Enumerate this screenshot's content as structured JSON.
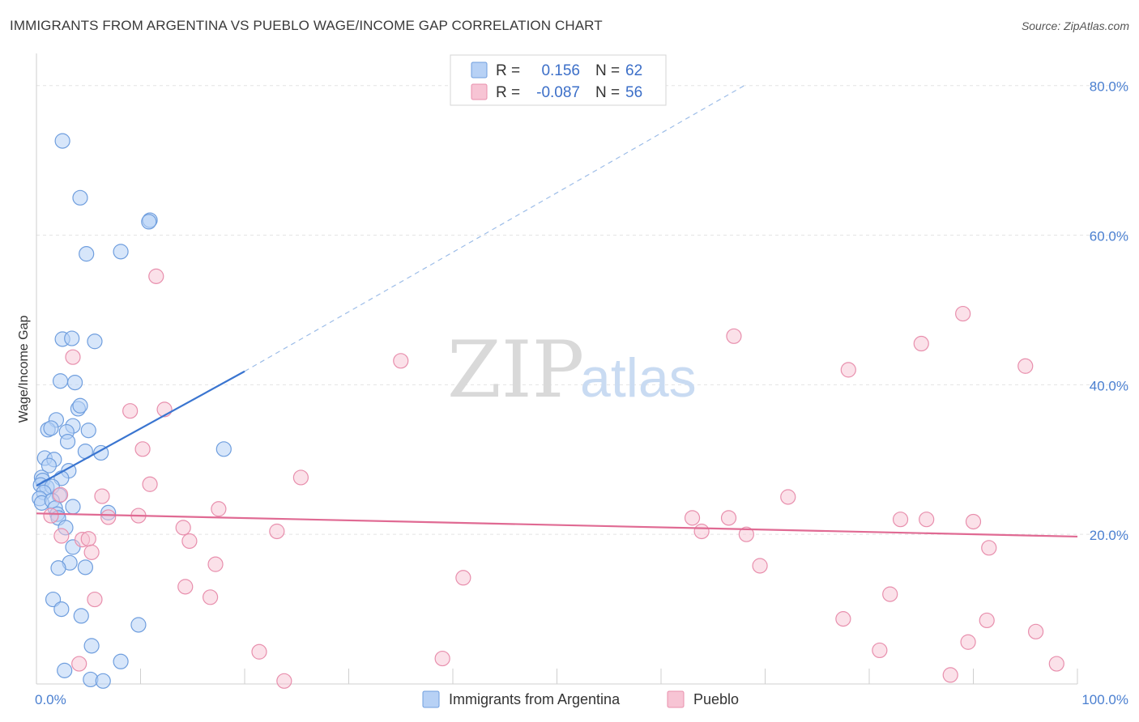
{
  "header": {
    "title": "IMMIGRANTS FROM ARGENTINA VS PUEBLO WAGE/INCOME GAP CORRELATION CHART",
    "source": "Source: ZipAtlas.com"
  },
  "watermark": {
    "zip": "ZIP",
    "atlas": "atlas"
  },
  "colors": {
    "blue_fill": "#b7d1f5",
    "blue_stroke": "#6f9ede",
    "blue_line": "#3a75d0",
    "pink_fill": "#f7c4d4",
    "pink_stroke": "#e88fad",
    "pink_line": "#e06a93",
    "tick_text": "#4a7fd0",
    "grid": "#e4e4e4"
  },
  "legend": {
    "rows": [
      {
        "r_label": "R =",
        "r_value": "0.156",
        "n_label": "N =",
        "n_value": "62"
      },
      {
        "r_label": "R =",
        "r_value": "-0.087",
        "n_label": "N =",
        "n_value": "56"
      }
    ]
  },
  "chart_data": {
    "type": "scatter",
    "title": "IMMIGRANTS FROM ARGENTINA VS PUEBLO WAGE/INCOME GAP CORRELATION CHART",
    "ylabel": "Wage/Income Gap",
    "xlabel": "",
    "xlim": [
      0,
      100
    ],
    "ylim": [
      0,
      80
    ],
    "x_tick_labels": [
      "0.0%",
      "100.0%"
    ],
    "y_tick_labels": [
      "20.0%",
      "40.0%",
      "60.0%",
      "80.0%"
    ],
    "y_ticks": [
      20,
      40,
      60,
      80
    ],
    "grid": true,
    "legend_position": "top-center",
    "series": [
      {
        "name": "Immigrants from Argentina",
        "color": "#b7d1f5",
        "trend": {
          "x": [
            0,
            20
          ],
          "y": [
            26.5,
            41.8
          ],
          "dashed_extension_to": [
            68,
            80.0
          ]
        },
        "points": [
          [
            2.5,
            72.6
          ],
          [
            4.2,
            65.0
          ],
          [
            10.9,
            62.0
          ],
          [
            10.8,
            61.8
          ],
          [
            4.8,
            57.5
          ],
          [
            8.1,
            57.8
          ],
          [
            2.5,
            46.1
          ],
          [
            3.4,
            46.2
          ],
          [
            5.6,
            45.8
          ],
          [
            2.3,
            40.5
          ],
          [
            3.7,
            40.3
          ],
          [
            4.0,
            36.8
          ],
          [
            4.2,
            37.2
          ],
          [
            1.9,
            35.3
          ],
          [
            3.5,
            34.5
          ],
          [
            1.1,
            34.0
          ],
          [
            1.4,
            34.2
          ],
          [
            2.9,
            33.7
          ],
          [
            5.0,
            33.9
          ],
          [
            3.0,
            32.4
          ],
          [
            4.7,
            31.1
          ],
          [
            6.2,
            30.9
          ],
          [
            18.0,
            31.4
          ],
          [
            0.8,
            30.2
          ],
          [
            1.7,
            30.0
          ],
          [
            1.2,
            29.2
          ],
          [
            3.1,
            28.5
          ],
          [
            0.5,
            27.6
          ],
          [
            0.6,
            27.2
          ],
          [
            2.4,
            27.5
          ],
          [
            0.4,
            26.6
          ],
          [
            1.0,
            26.3
          ],
          [
            1.5,
            26.4
          ],
          [
            0.7,
            25.6
          ],
          [
            0.3,
            24.8
          ],
          [
            2.2,
            25.2
          ],
          [
            0.5,
            24.2
          ],
          [
            1.5,
            24.5
          ],
          [
            1.8,
            23.5
          ],
          [
            3.5,
            23.7
          ],
          [
            2.0,
            22.7
          ],
          [
            2.1,
            22.2
          ],
          [
            6.9,
            22.9
          ],
          [
            2.8,
            20.9
          ],
          [
            3.5,
            18.3
          ],
          [
            3.2,
            16.2
          ],
          [
            2.1,
            15.5
          ],
          [
            4.7,
            15.6
          ],
          [
            1.6,
            11.3
          ],
          [
            2.4,
            10.0
          ],
          [
            4.3,
            9.1
          ],
          [
            9.8,
            7.9
          ],
          [
            5.3,
            5.1
          ],
          [
            8.1,
            3.0
          ],
          [
            2.7,
            1.8
          ],
          [
            5.2,
            0.6
          ],
          [
            6.4,
            0.4
          ]
        ]
      },
      {
        "name": "Pueblo",
        "color": "#f7c4d4",
        "trend": {
          "x": [
            0,
            100
          ],
          "y": [
            22.8,
            19.7
          ]
        },
        "points": [
          [
            11.5,
            54.5
          ],
          [
            3.5,
            43.7
          ],
          [
            35.0,
            43.2
          ],
          [
            67.0,
            46.5
          ],
          [
            78.0,
            42.0
          ],
          [
            85.0,
            45.5
          ],
          [
            89.0,
            49.5
          ],
          [
            95.0,
            42.5
          ],
          [
            9.0,
            36.5
          ],
          [
            12.3,
            36.7
          ],
          [
            10.2,
            31.4
          ],
          [
            10.9,
            26.7
          ],
          [
            25.4,
            27.6
          ],
          [
            6.3,
            25.1
          ],
          [
            2.3,
            25.3
          ],
          [
            72.2,
            25.0
          ],
          [
            17.5,
            23.4
          ],
          [
            1.4,
            22.5
          ],
          [
            6.9,
            22.3
          ],
          [
            9.8,
            22.5
          ],
          [
            63.0,
            22.2
          ],
          [
            66.5,
            22.2
          ],
          [
            83.0,
            22.0
          ],
          [
            85.5,
            22.0
          ],
          [
            90.0,
            21.7
          ],
          [
            14.1,
            20.9
          ],
          [
            23.1,
            20.4
          ],
          [
            63.9,
            20.4
          ],
          [
            68.2,
            20.0
          ],
          [
            2.4,
            19.8
          ],
          [
            4.4,
            19.3
          ],
          [
            5.0,
            19.4
          ],
          [
            14.7,
            19.1
          ],
          [
            91.5,
            18.2
          ],
          [
            5.3,
            17.6
          ],
          [
            17.2,
            16.0
          ],
          [
            69.5,
            15.8
          ],
          [
            41.0,
            14.2
          ],
          [
            14.3,
            13.0
          ],
          [
            16.7,
            11.6
          ],
          [
            5.6,
            11.3
          ],
          [
            82.0,
            12.0
          ],
          [
            77.5,
            8.7
          ],
          [
            91.3,
            8.5
          ],
          [
            96.0,
            7.0
          ],
          [
            81.0,
            4.5
          ],
          [
            89.5,
            5.6
          ],
          [
            21.4,
            4.3
          ],
          [
            39.0,
            3.4
          ],
          [
            4.1,
            2.7
          ],
          [
            98.0,
            2.7
          ],
          [
            87.8,
            1.2
          ],
          [
            23.8,
            0.4
          ]
        ]
      }
    ]
  },
  "bottom_legend": {
    "items": [
      "Immigrants from Argentina",
      "Pueblo"
    ]
  }
}
